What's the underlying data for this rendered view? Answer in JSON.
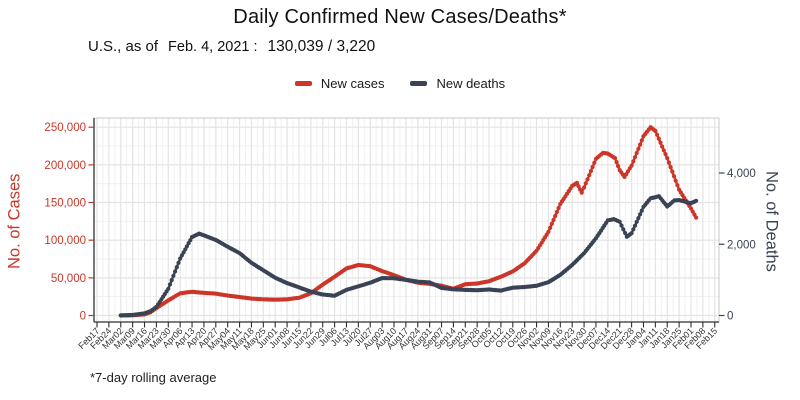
{
  "title": "Daily Confirmed New Cases/Deaths*",
  "subtitle": {
    "prefix": "U.S., as of",
    "date": "Feb. 4, 2021 :",
    "values": "130,039 / 3,220"
  },
  "legend": {
    "items": [
      {
        "label": "New cases",
        "color": "#cc3628"
      },
      {
        "label": "New deaths",
        "color": "#3a4355"
      }
    ]
  },
  "footnote": "*7-day rolling average",
  "chart_data": {
    "type": "line",
    "title": "Daily Confirmed New Cases/Deaths*",
    "subtitle": "U.S., as of Feb. 4, 2021 : 130,039 / 3,220",
    "footnote": "*7-day rolling average",
    "grid": true,
    "legend_position": "top",
    "x_tick_labels": [
      "Feb17",
      "Feb24",
      "Mar02",
      "Mar09",
      "Mar16",
      "Mar23",
      "Mar30",
      "Apr06",
      "Apr13",
      "Apr20",
      "Apr27",
      "May04",
      "May11",
      "May18",
      "May25",
      "Jun01",
      "Jun08",
      "Jun15",
      "Jun22",
      "Jun29",
      "Jul06",
      "Jul13",
      "Jul20",
      "Jul27",
      "Aug03",
      "Aug10",
      "Aug17",
      "Aug24",
      "Aug31",
      "Sep07",
      "Sep14",
      "Sep21",
      "Sep28",
      "Oct05",
      "Oct12",
      "Oct19",
      "Oct26",
      "Nov02",
      "Nov09",
      "Nov16",
      "Nov23",
      "Nov30",
      "Dec07",
      "Dec14",
      "Dec21",
      "Dec28",
      "Jan04",
      "Jan11",
      "Jan18",
      "Jan25",
      "Feb01",
      "Feb08",
      "Feb15"
    ],
    "left_axis": {
      "label": "No. of Cases",
      "color": "#cc3628",
      "ticks": [
        0,
        50000,
        100000,
        150000,
        200000,
        250000
      ],
      "range": [
        0,
        250000
      ]
    },
    "right_axis": {
      "label": "No. of Deaths",
      "color": "#3a4355",
      "ticks": [
        0,
        2000,
        4000
      ],
      "range": [
        0,
        4000
      ]
    },
    "series": [
      {
        "name": "New cases",
        "axis": "left",
        "color": "#cc3628",
        "points": [
          [
            2,
            50
          ],
          [
            3,
            250
          ],
          [
            4,
            1500
          ],
          [
            4.5,
            4200
          ],
          [
            5,
            9800
          ],
          [
            6,
            20000
          ],
          [
            7,
            29500
          ],
          [
            8,
            31500
          ],
          [
            9,
            30000
          ],
          [
            10,
            29000
          ],
          [
            11,
            26500
          ],
          [
            12,
            24500
          ],
          [
            13,
            22500
          ],
          [
            14,
            21500
          ],
          [
            15,
            21000
          ],
          [
            16,
            21500
          ],
          [
            17,
            23500
          ],
          [
            18,
            29500
          ],
          [
            19,
            41000
          ],
          [
            20,
            51500
          ],
          [
            21,
            62500
          ],
          [
            22,
            67000
          ],
          [
            23,
            65500
          ],
          [
            24,
            59000
          ],
          [
            25,
            53500
          ],
          [
            26,
            47500
          ],
          [
            27,
            43500
          ],
          [
            28,
            42000
          ],
          [
            29,
            39500
          ],
          [
            30,
            35500
          ],
          [
            31,
            41500
          ],
          [
            32,
            42500
          ],
          [
            33,
            45500
          ],
          [
            34,
            51500
          ],
          [
            35,
            58500
          ],
          [
            36,
            69500
          ],
          [
            37,
            86000
          ],
          [
            38,
            111000
          ],
          [
            39,
            148000
          ],
          [
            40,
            172000
          ],
          [
            40.4,
            176000
          ],
          [
            40.8,
            163000
          ],
          [
            41,
            170000
          ],
          [
            42,
            208000
          ],
          [
            42.6,
            216000
          ],
          [
            43,
            215000
          ],
          [
            43.6,
            209000
          ],
          [
            44,
            193000
          ],
          [
            44.4,
            184000
          ],
          [
            45,
            199000
          ],
          [
            46,
            238000
          ],
          [
            46.6,
            250000
          ],
          [
            47,
            245000
          ],
          [
            48,
            209000
          ],
          [
            49,
            167000
          ],
          [
            50,
            142000
          ],
          [
            50.43,
            130039
          ]
        ]
      },
      {
        "name": "New deaths",
        "axis": "right",
        "color": "#3a4355",
        "points": [
          [
            2,
            2
          ],
          [
            3,
            15
          ],
          [
            4,
            60
          ],
          [
            4.5,
            120
          ],
          [
            5,
            240
          ],
          [
            6,
            750
          ],
          [
            7,
            1600
          ],
          [
            8,
            2200
          ],
          [
            8.6,
            2300
          ],
          [
            9,
            2250
          ],
          [
            10,
            2120
          ],
          [
            11,
            1930
          ],
          [
            12,
            1750
          ],
          [
            13,
            1480
          ],
          [
            14,
            1270
          ],
          [
            15,
            1060
          ],
          [
            16,
            910
          ],
          [
            17,
            790
          ],
          [
            18,
            670
          ],
          [
            19,
            590
          ],
          [
            20,
            555
          ],
          [
            21,
            720
          ],
          [
            22,
            820
          ],
          [
            23,
            920
          ],
          [
            24,
            1050
          ],
          [
            25,
            1045
          ],
          [
            26,
            1000
          ],
          [
            27,
            950
          ],
          [
            28,
            930
          ],
          [
            29,
            775
          ],
          [
            30,
            735
          ],
          [
            31,
            720
          ],
          [
            32,
            710
          ],
          [
            33,
            730
          ],
          [
            34,
            700
          ],
          [
            35,
            780
          ],
          [
            36,
            800
          ],
          [
            37,
            835
          ],
          [
            38,
            935
          ],
          [
            39,
            1140
          ],
          [
            40,
            1420
          ],
          [
            41,
            1750
          ],
          [
            42,
            2170
          ],
          [
            43,
            2670
          ],
          [
            43.5,
            2705
          ],
          [
            44,
            2630
          ],
          [
            44.6,
            2210
          ],
          [
            45,
            2310
          ],
          [
            46,
            3050
          ],
          [
            46.6,
            3290
          ],
          [
            47,
            3320
          ],
          [
            47.3,
            3350
          ],
          [
            48,
            3060
          ],
          [
            48.6,
            3230
          ],
          [
            49,
            3240
          ],
          [
            50,
            3150
          ],
          [
            50.43,
            3220
          ]
        ]
      }
    ]
  }
}
